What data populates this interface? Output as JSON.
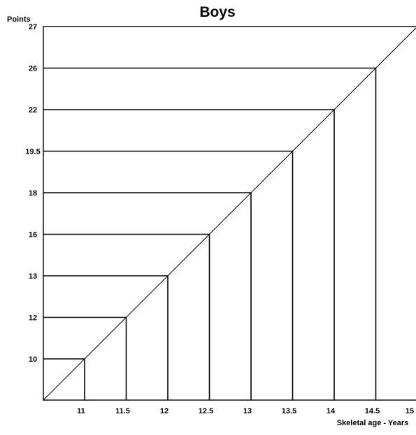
{
  "chart_data": {
    "type": "line",
    "title": "Boys",
    "xlabel": "Skeletal age - Years",
    "ylabel": "Points",
    "x_ticks": [
      "11",
      "11.5",
      "12",
      "12.5",
      "13",
      "13.5",
      "14",
      "14.5",
      "15"
    ],
    "y_ticks": [
      "10",
      "12",
      "13",
      "16",
      "18",
      "19.5",
      "22",
      "26",
      "27"
    ],
    "xlim": [
      10.5,
      15
    ],
    "grid": false,
    "legend": "none",
    "points": [
      {
        "x": 11,
        "y": 10
      },
      {
        "x": 11.5,
        "y": 12
      },
      {
        "x": 12,
        "y": 13
      },
      {
        "x": 12.5,
        "y": 16
      },
      {
        "x": 13,
        "y": 18
      },
      {
        "x": 13.5,
        "y": 19.5
      },
      {
        "x": 14,
        "y": 22
      },
      {
        "x": 14.5,
        "y": 26
      },
      {
        "x": 15,
        "y": 27
      }
    ]
  }
}
